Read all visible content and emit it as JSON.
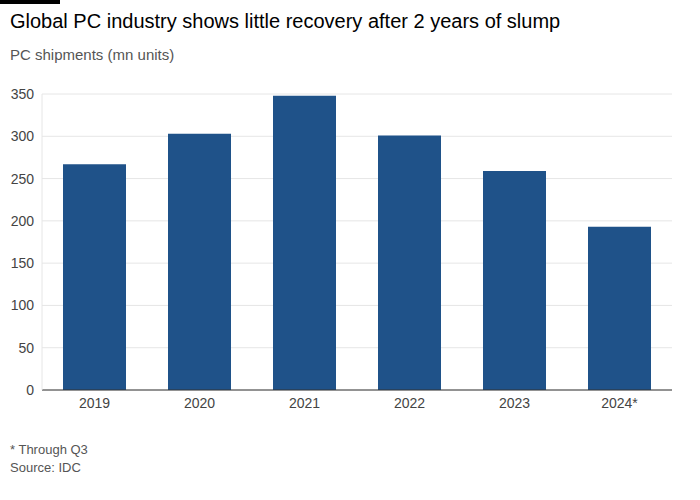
{
  "chart_data": {
    "type": "bar",
    "title": "Global PC industry shows little recovery after 2 years of slump",
    "subtitle": "PC shipments (mn units)",
    "categories": [
      "2019",
      "2020",
      "2021",
      "2022",
      "2023",
      "2024*"
    ],
    "values": [
      267,
      303,
      348,
      301,
      259,
      193
    ],
    "color": "#1f5289",
    "ylim": [
      0,
      350
    ],
    "yticks": [
      0,
      50,
      100,
      150,
      200,
      250,
      300,
      350
    ],
    "grid": true,
    "notes": [
      "* Through Q3",
      "Source: IDC"
    ]
  }
}
